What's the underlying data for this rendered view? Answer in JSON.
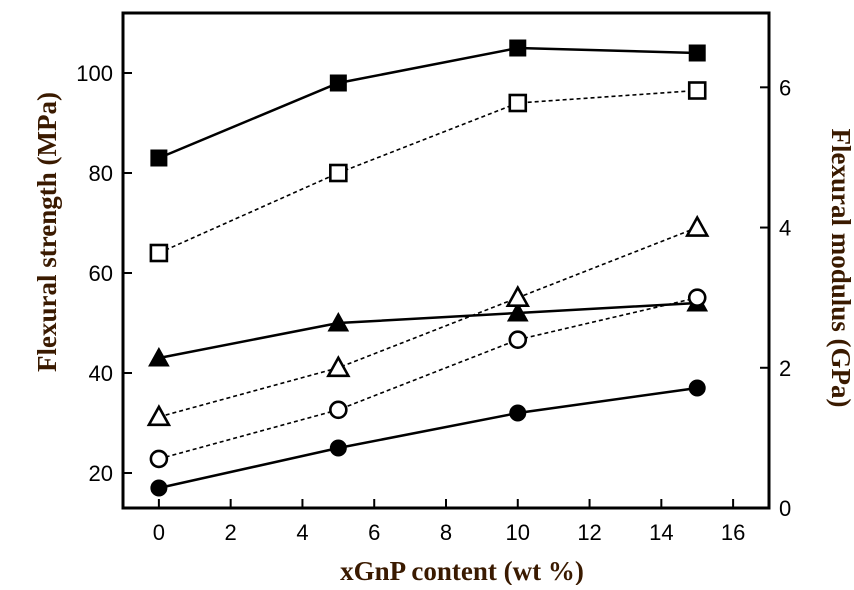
{
  "chart_data": {
    "type": "line",
    "xlabel": "xGnP content (wt %)",
    "ylabel_left": "Flexural strength (MPa)",
    "ylabel_right": "Flexural modulus (GPa)",
    "xlim": [
      -1,
      17
    ],
    "ylim_left": [
      13,
      112
    ],
    "ylim_right": [
      0,
      7.06
    ],
    "xticks": [
      0,
      2,
      4,
      6,
      8,
      10,
      12,
      14,
      16
    ],
    "yticks_left": [
      20,
      40,
      60,
      80,
      100
    ],
    "yticks_right": [
      0,
      2,
      4,
      6
    ],
    "grid": false,
    "legend": "none",
    "series": [
      {
        "axis": "left",
        "marker": "square",
        "fill": "filled",
        "line": "solid",
        "x": [
          0,
          5,
          10,
          15
        ],
        "y": [
          83,
          98,
          105,
          104
        ]
      },
      {
        "axis": "left",
        "marker": "square",
        "fill": "open",
        "line": "dotted",
        "x": [
          0,
          5,
          10,
          15
        ],
        "y": [
          64,
          80,
          94,
          96.5
        ]
      },
      {
        "axis": "left",
        "marker": "triangle",
        "fill": "filled",
        "line": "solid",
        "x": [
          0,
          5,
          10,
          15
        ],
        "y": [
          43,
          50,
          52,
          54
        ]
      },
      {
        "axis": "right",
        "marker": "triangle",
        "fill": "open",
        "line": "dotted",
        "x": [
          0,
          5,
          10,
          15
        ],
        "y": [
          1.3,
          2.0,
          3.0,
          4.0
        ]
      },
      {
        "axis": "right",
        "marker": "circle",
        "fill": "open",
        "line": "dotted",
        "x": [
          0,
          5,
          10,
          15
        ],
        "y": [
          0.7,
          1.4,
          2.4,
          3.0
        ]
      },
      {
        "axis": "left",
        "marker": "circle",
        "fill": "filled",
        "line": "solid",
        "x": [
          0,
          5,
          10,
          15
        ],
        "y": [
          17,
          25,
          32,
          37
        ]
      }
    ]
  }
}
